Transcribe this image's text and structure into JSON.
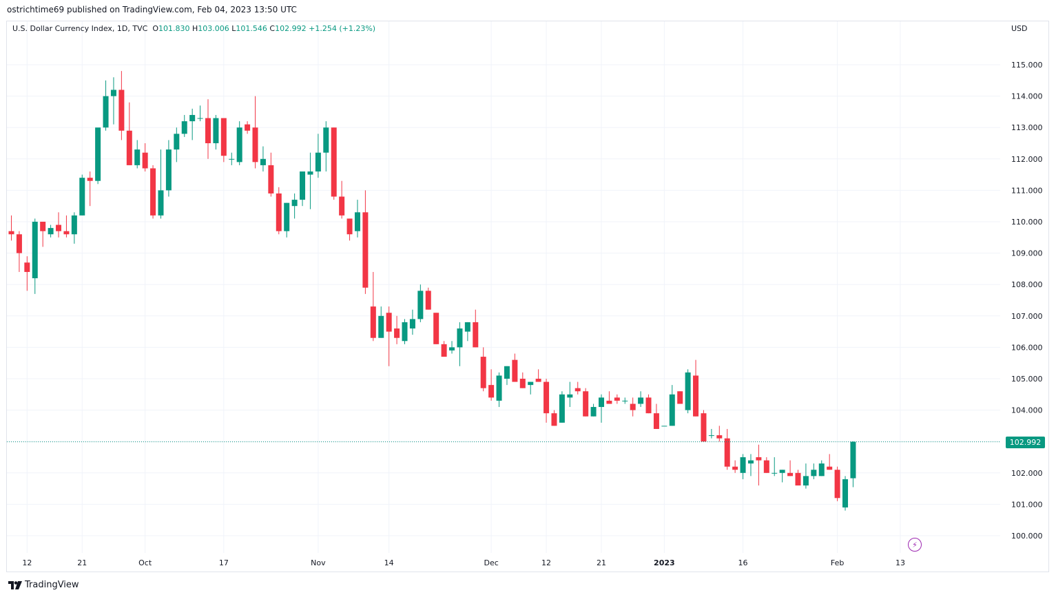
{
  "header": {
    "published_line": "ostrichtime69 published on TradingView.com, Feb 04, 2023 13:50 UTC"
  },
  "legend": {
    "symbol_line": "U.S. Dollar Currency Index, 1D, TVC",
    "o_label": "O",
    "o_value": "101.830",
    "h_label": "H",
    "h_value": "103.006",
    "l_label": "L",
    "l_value": "101.546",
    "c_label": "C",
    "c_value": "102.992",
    "change": "+1.254 (+1.23%)"
  },
  "axis": {
    "currency": "USD",
    "last_price_label": "102.992"
  },
  "footer": {
    "brand": "TradingView"
  },
  "colors": {
    "up": "#089981",
    "down": "#f23645",
    "grid": "#f0f3fa",
    "last_line": "#089981"
  },
  "chart_data": {
    "type": "candlestick",
    "symbol": "U.S. Dollar Currency Index",
    "interval": "1D",
    "ylim": [
      99.8,
      115.9
    ],
    "y_ticks": [
      "100.000",
      "101.000",
      "102.000",
      "103.000",
      "104.000",
      "105.000",
      "106.000",
      "107.000",
      "108.000",
      "109.000",
      "110.000",
      "111.000",
      "112.000",
      "113.000",
      "114.000",
      "115.000"
    ],
    "x_ticks": [
      {
        "label": "12",
        "bar": 2,
        "bold": false
      },
      {
        "label": "21",
        "bar": 9,
        "bold": false
      },
      {
        "label": "Oct",
        "bar": 17,
        "bold": false
      },
      {
        "label": "17",
        "bar": 27,
        "bold": false
      },
      {
        "label": "Nov",
        "bar": 39,
        "bold": false
      },
      {
        "label": "14",
        "bar": 48,
        "bold": false
      },
      {
        "label": "Dec",
        "bar": 61,
        "bold": false
      },
      {
        "label": "12",
        "bar": 68,
        "bold": false
      },
      {
        "label": "21",
        "bar": 75,
        "bold": false
      },
      {
        "label": "2023",
        "bar": 83,
        "bold": true
      },
      {
        "label": "16",
        "bar": 93,
        "bold": false
      },
      {
        "label": "Feb",
        "bar": 105,
        "bold": false
      },
      {
        "label": "13",
        "bar": 113,
        "bold": false
      }
    ],
    "candles": [
      [
        109.7,
        110.2,
        109.4,
        109.6
      ],
      [
        109.6,
        109.7,
        108.4,
        109.0
      ],
      [
        108.7,
        108.9,
        107.8,
        108.4
      ],
      [
        108.2,
        110.1,
        107.7,
        110.0
      ],
      [
        110.0,
        110.0,
        109.2,
        109.7
      ],
      [
        109.6,
        109.9,
        109.5,
        109.8
      ],
      [
        109.9,
        110.3,
        109.5,
        109.7
      ],
      [
        109.7,
        110.2,
        109.5,
        109.6
      ],
      [
        109.6,
        110.3,
        109.3,
        110.2
      ],
      [
        110.2,
        111.5,
        110.2,
        111.4
      ],
      [
        111.4,
        111.6,
        110.5,
        111.3
      ],
      [
        111.3,
        112.9,
        111.2,
        113.0
      ],
      [
        113.0,
        114.5,
        112.9,
        114.0
      ],
      [
        114.0,
        114.6,
        113.1,
        114.2
      ],
      [
        114.2,
        114.8,
        112.6,
        112.9
      ],
      [
        112.9,
        113.8,
        111.8,
        111.8
      ],
      [
        111.8,
        112.6,
        111.7,
        112.3
      ],
      [
        112.2,
        112.5,
        111.6,
        111.7
      ],
      [
        111.7,
        111.8,
        110.1,
        110.2
      ],
      [
        110.2,
        112.3,
        110.1,
        111.0
      ],
      [
        111.0,
        112.6,
        110.8,
        112.3
      ],
      [
        112.3,
        113.0,
        111.9,
        112.8
      ],
      [
        112.8,
        113.4,
        112.7,
        113.2
      ],
      [
        113.2,
        113.6,
        112.6,
        113.4
      ],
      [
        113.3,
        113.7,
        113.2,
        113.3
      ],
      [
        113.3,
        113.9,
        112.0,
        112.5
      ],
      [
        112.5,
        113.4,
        112.3,
        113.3
      ],
      [
        113.3,
        113.3,
        111.9,
        112.1
      ],
      [
        112.0,
        112.2,
        111.8,
        112.0
      ],
      [
        111.9,
        113.2,
        111.8,
        113.0
      ],
      [
        113.1,
        113.2,
        112.8,
        112.9
      ],
      [
        113.0,
        114.0,
        111.7,
        111.9
      ],
      [
        111.8,
        112.4,
        111.6,
        112.0
      ],
      [
        111.8,
        112.2,
        110.8,
        110.9
      ],
      [
        110.9,
        111.1,
        109.6,
        109.7
      ],
      [
        109.7,
        110.6,
        109.5,
        110.6
      ],
      [
        110.5,
        110.9,
        110.1,
        110.7
      ],
      [
        110.7,
        111.6,
        110.5,
        111.6
      ],
      [
        111.5,
        112.2,
        110.4,
        111.6
      ],
      [
        111.6,
        112.8,
        111.4,
        112.2
      ],
      [
        112.2,
        113.2,
        111.6,
        113.0
      ],
      [
        113.0,
        113.0,
        110.7,
        110.8
      ],
      [
        110.8,
        111.3,
        110.1,
        110.2
      ],
      [
        110.1,
        110.1,
        109.4,
        109.6
      ],
      [
        109.7,
        110.7,
        109.5,
        110.3
      ],
      [
        110.3,
        111.0,
        107.7,
        107.9
      ],
      [
        107.3,
        108.4,
        106.2,
        106.3
      ],
      [
        106.3,
        107.3,
        106.3,
        107.0
      ],
      [
        107.1,
        107.3,
        105.4,
        106.5
      ],
      [
        106.6,
        107.0,
        106.1,
        106.3
      ],
      [
        106.2,
        106.9,
        106.1,
        106.8
      ],
      [
        106.6,
        107.2,
        106.4,
        106.9
      ],
      [
        106.9,
        108.0,
        106.8,
        107.8
      ],
      [
        107.8,
        107.9,
        107.2,
        107.2
      ],
      [
        107.1,
        107.1,
        106.1,
        106.1
      ],
      [
        106.1,
        106.2,
        105.7,
        105.7
      ],
      [
        105.9,
        106.2,
        105.8,
        106.0
      ],
      [
        106.0,
        106.8,
        105.4,
        106.6
      ],
      [
        106.5,
        106.8,
        106.2,
        106.8
      ],
      [
        106.8,
        107.2,
        106.0,
        106.0
      ],
      [
        105.7,
        106.0,
        104.6,
        104.7
      ],
      [
        104.8,
        105.3,
        104.3,
        104.4
      ],
      [
        104.3,
        105.2,
        104.1,
        105.1
      ],
      [
        105.0,
        105.4,
        104.8,
        105.4
      ],
      [
        105.6,
        105.8,
        104.9,
        104.9
      ],
      [
        105.0,
        105.2,
        104.7,
        104.7
      ],
      [
        104.8,
        104.9,
        104.5,
        104.9
      ],
      [
        105.0,
        105.3,
        104.9,
        104.9
      ],
      [
        104.9,
        105.0,
        103.6,
        103.9
      ],
      [
        103.9,
        104.0,
        103.5,
        103.5
      ],
      [
        103.6,
        104.6,
        103.6,
        104.5
      ],
      [
        104.4,
        104.9,
        104.1,
        104.5
      ],
      [
        104.7,
        104.9,
        104.5,
        104.6
      ],
      [
        104.6,
        104.7,
        103.8,
        103.8
      ],
      [
        103.8,
        104.2,
        103.8,
        104.1
      ],
      [
        104.1,
        104.5,
        103.6,
        104.4
      ],
      [
        104.3,
        104.6,
        104.2,
        104.2
      ],
      [
        104.4,
        104.5,
        104.2,
        104.3
      ],
      [
        104.3,
        104.4,
        104.2,
        104.3
      ],
      [
        104.2,
        104.4,
        103.8,
        104.0
      ],
      [
        104.2,
        104.6,
        104.1,
        104.4
      ],
      [
        104.4,
        104.5,
        103.9,
        103.9
      ],
      [
        103.9,
        104.2,
        103.4,
        103.4
      ],
      [
        103.5,
        103.5,
        103.5,
        103.5
      ],
      [
        103.5,
        104.8,
        103.5,
        104.5
      ],
      [
        104.6,
        104.6,
        104.2,
        104.2
      ],
      [
        104.0,
        105.3,
        103.9,
        105.2
      ],
      [
        105.1,
        105.6,
        103.8,
        103.8
      ],
      [
        103.9,
        104.0,
        103.0,
        103.0
      ],
      [
        103.2,
        103.4,
        103.1,
        103.2
      ],
      [
        103.2,
        103.5,
        103.0,
        103.1
      ],
      [
        103.1,
        103.4,
        102.1,
        102.2
      ],
      [
        102.2,
        102.4,
        102.0,
        102.1
      ],
      [
        102.0,
        102.6,
        101.8,
        102.5
      ],
      [
        102.3,
        102.6,
        101.9,
        102.4
      ],
      [
        102.5,
        102.9,
        101.6,
        102.4
      ],
      [
        102.4,
        102.5,
        102.0,
        102.0
      ],
      [
        102.0,
        102.5,
        101.9,
        102.0
      ],
      [
        102.0,
        102.1,
        101.7,
        102.1
      ],
      [
        102.0,
        102.4,
        101.9,
        101.9
      ],
      [
        102.0,
        102.1,
        101.6,
        101.6
      ],
      [
        101.6,
        102.3,
        101.5,
        101.9
      ],
      [
        101.9,
        102.3,
        101.8,
        102.1
      ],
      [
        101.9,
        102.4,
        101.9,
        102.3
      ],
      [
        102.2,
        102.6,
        102.1,
        102.1
      ],
      [
        102.1,
        102.2,
        101.1,
        101.2
      ],
      [
        100.9,
        101.9,
        100.8,
        101.8
      ],
      [
        101.83,
        103.006,
        101.546,
        102.992
      ]
    ]
  }
}
